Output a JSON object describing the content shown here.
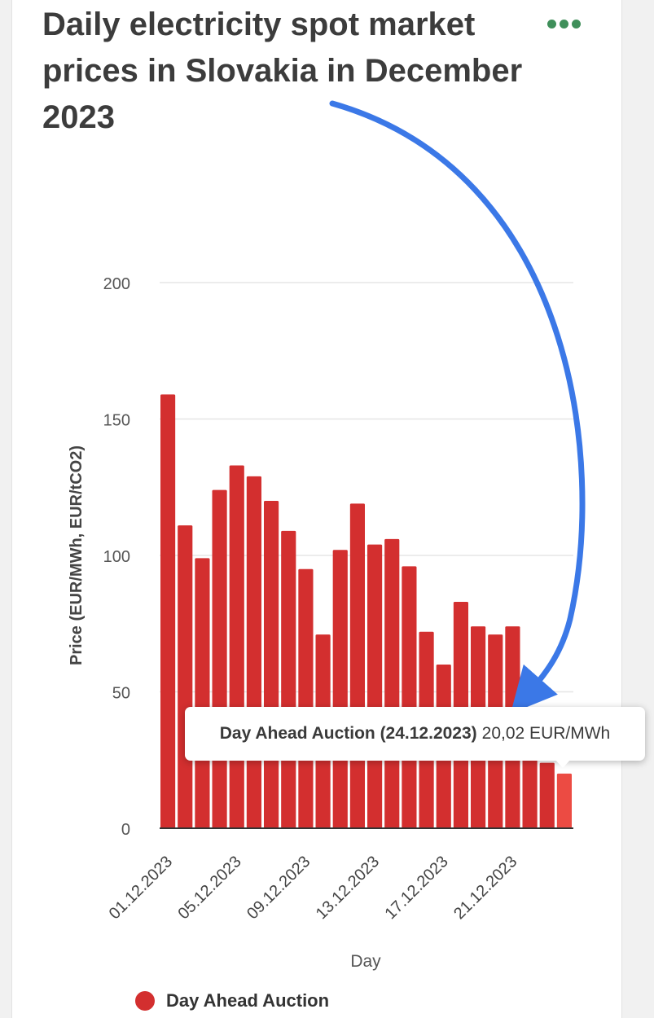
{
  "title": "Daily electricity spot market prices in Slovakia in December 2023",
  "colors": {
    "bar": "#d32f2f",
    "bar_highlight": "#ec4b43",
    "grid": "#e6e6e6",
    "arrow": "#3b78e7",
    "menu_dots": "#3f8f5a"
  },
  "menu": {
    "icon": "more-dots-icon"
  },
  "tooltip": {
    "series": "Day Ahead Auction (24.12.2023)",
    "value": "20,02 EUR/MWh"
  },
  "legend": [
    {
      "label": "Day Ahead Auction",
      "color": "#d32f2f"
    }
  ],
  "chart_data": {
    "type": "bar",
    "title": "Daily electricity spot market prices in Slovakia in December 2023",
    "xlabel": "Day",
    "ylabel": "Price (EUR/MWh, EUR/tCO2)",
    "ylim": [
      0,
      200
    ],
    "yticks": [
      0,
      50,
      100,
      150,
      200
    ],
    "grid": true,
    "legend_position": "bottom",
    "x_tick_labels": [
      "01.12.2023",
      "05.12.2023",
      "09.12.2023",
      "13.12.2023",
      "17.12.2023",
      "21.12.2023"
    ],
    "x_tick_indices": [
      0,
      4,
      8,
      12,
      16,
      20
    ],
    "categories": [
      "01.12.2023",
      "02.12.2023",
      "03.12.2023",
      "04.12.2023",
      "05.12.2023",
      "06.12.2023",
      "07.12.2023",
      "08.12.2023",
      "09.12.2023",
      "10.12.2023",
      "11.12.2023",
      "12.12.2023",
      "13.12.2023",
      "14.12.2023",
      "15.12.2023",
      "16.12.2023",
      "17.12.2023",
      "18.12.2023",
      "19.12.2023",
      "20.12.2023",
      "21.12.2023",
      "22.12.2023",
      "23.12.2023",
      "24.12.2023"
    ],
    "series": [
      {
        "name": "Day Ahead Auction",
        "values": [
          159,
          111,
          99,
          124,
          133,
          129,
          120,
          109,
          95,
          71,
          102,
          119,
          104,
          106,
          96,
          72,
          60,
          83,
          74,
          71,
          74,
          35,
          24,
          20.02
        ]
      }
    ],
    "highlight_index": 23
  }
}
